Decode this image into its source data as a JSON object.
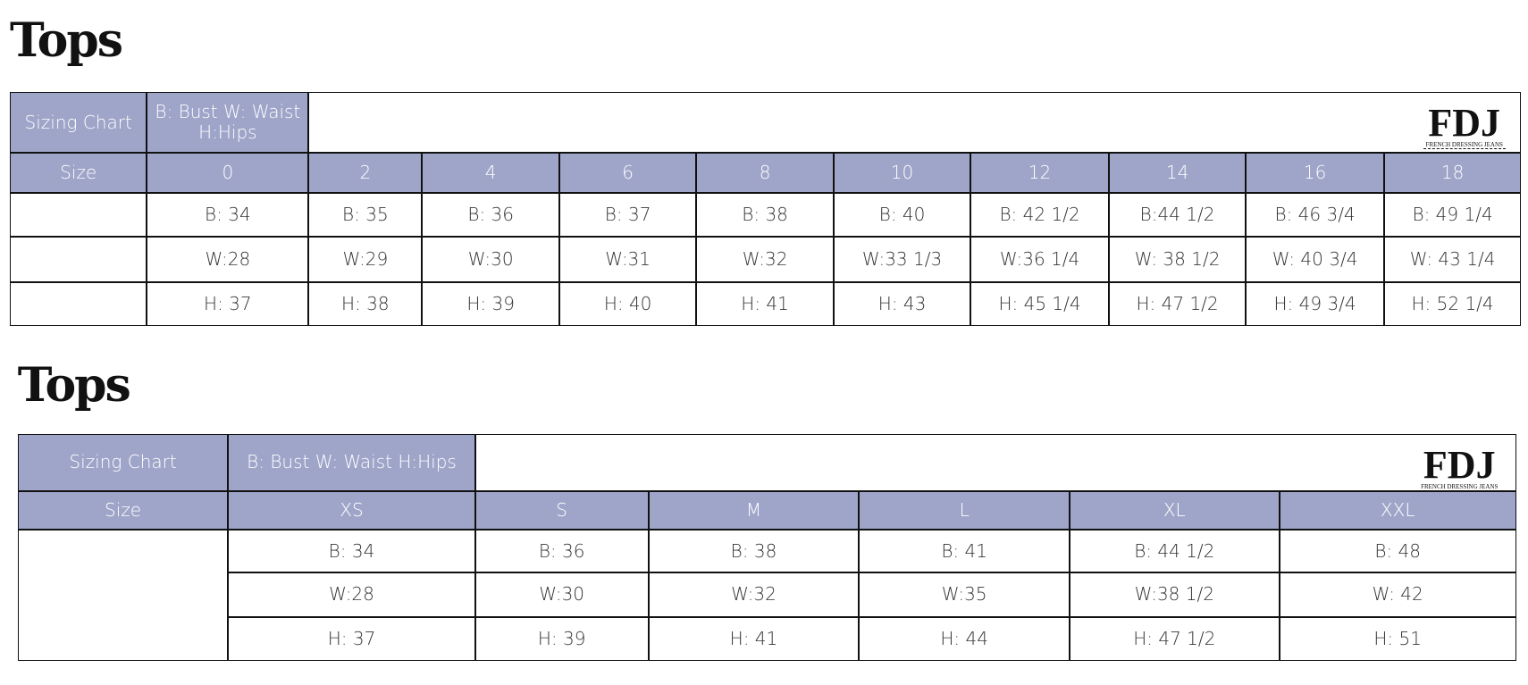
{
  "sections": [
    {
      "title": "Tops",
      "table": {
        "header": [
          "Sizing Chart",
          "B: Bust W: Waist H:Hips"
        ],
        "logo": {
          "mark": "FDJ",
          "name": "FRENCH DRESSING JEANS"
        },
        "size_label": "Size",
        "sizes": [
          "0",
          "2",
          "4",
          "6",
          "8",
          "10",
          "12",
          "14",
          "16",
          "18"
        ],
        "rows": [
          [
            "B: 34",
            "B: 35",
            "B: 36",
            "B: 37",
            "B: 38",
            "B: 40",
            "B: 42 1/2",
            "B:44 1/2",
            "B: 46 3/4",
            "B: 49 1/4"
          ],
          [
            "W:28",
            "W:29",
            "W:30",
            "W:31",
            "W:32",
            "W:33 1/3",
            "W:36 1/4",
            "W: 38 1/2",
            "W: 40 3/4",
            "W: 43 1/4"
          ],
          [
            "H: 37",
            "H: 38",
            "H: 39",
            "H: 40",
            "H: 41",
            "H: 43",
            "H: 45 1/4",
            "H: 47 1/2",
            "H: 49 3/4",
            "H: 52 1/4"
          ]
        ]
      }
    },
    {
      "title": "Tops",
      "table": {
        "header": [
          "Sizing Chart",
          "B: Bust W: Waist H:Hips"
        ],
        "logo": {
          "mark": "FDJ",
          "name": "FRENCH DRESSING JEANS"
        },
        "size_label": "Size",
        "sizes": [
          "XS",
          "S",
          "M",
          "L",
          "XL",
          "XXL"
        ],
        "rows": [
          [
            "B: 34",
            "B: 36",
            "B: 38",
            "B: 41",
            "B: 44 1/2",
            "B: 48"
          ],
          [
            "W:28",
            "W:30",
            "W:32",
            "W:35",
            "W:38 1/2",
            "W: 42"
          ],
          [
            "H: 37",
            "H: 39",
            "H: 41",
            "H: 44",
            "H: 47 1/2",
            "H: 51"
          ]
        ]
      }
    }
  ]
}
